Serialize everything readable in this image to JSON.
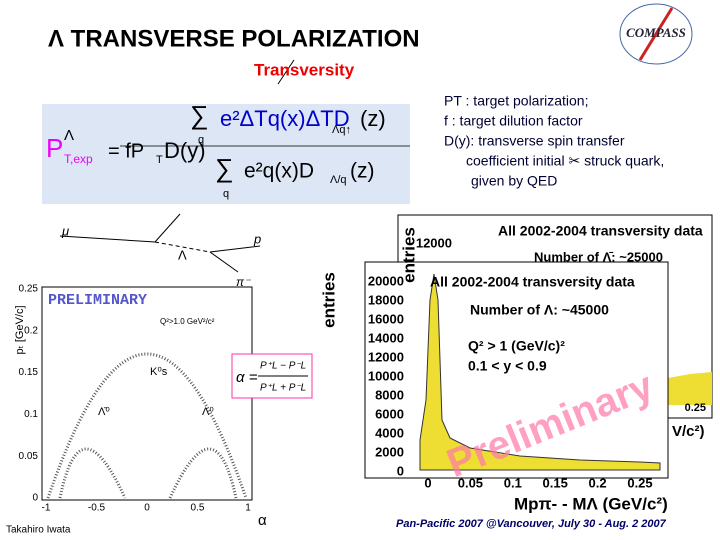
{
  "header": {
    "title": "Λ TRANSVERSE  POLARIZATION",
    "logo": "COMPASS",
    "subtitle": "Transversity"
  },
  "formula": {
    "lhs": "P",
    "lhs_sup": "Λ",
    "lhs_sub": "T,exp",
    "eq": "= fP",
    "eq_sub": "T",
    "dy": "D(y)",
    "sum": "∑",
    "sum_index": "q",
    "num": "e²ΔTq(x)ΔTD",
    "num_sub": "Λq↑",
    "num_end": "(z)",
    "den": "e²q(x)D",
    "den_sub": "Λ/q",
    "den_end": "(z)",
    "eq_index": "q"
  },
  "definitions": [
    "PT : target polarization;",
    "f : target dilution factor",
    "D(y): transverse spin transfer",
    "coefficient  initial ✂ struck quark,",
    "given by QED"
  ],
  "decay": {
    "mu": "μ",
    "lambda": "Λ",
    "p": "p",
    "pi": "π⁻"
  },
  "armenteros": {
    "stamp": "PRELIMINARY",
    "cut": "Q²>1.0 GeV²/c²",
    "ylabel": "pₜ [GeV/c]",
    "xlabel": "α",
    "yticks": [
      "0.25",
      "0.2",
      "0.15",
      "0.1",
      "0.05",
      "0"
    ],
    "xticks": [
      "-1",
      "-0.5",
      "0",
      "0.5",
      "1"
    ],
    "k0": "K⁰s",
    "lambdabar": "Λ̄⁰",
    "lambda": "Λ⁰",
    "alpha": "α =",
    "alpha_num": "P⁺L − P⁻L",
    "alpha_den": "P⁺L + P⁻L"
  },
  "back_histogram": {
    "ylabel": "entries",
    "ytick": "12000",
    "title": "All 2002-2004 transversity data",
    "count": "Number of Λ̄: ~25000",
    "xtick": "0.25",
    "xlabel_tail": "V/c²)"
  },
  "front_histogram": {
    "ylabel": "entries",
    "yticks": [
      "20000",
      "18000",
      "16000",
      "14000",
      "12000",
      "10000",
      "8000",
      "6000",
      "4000",
      "2000",
      "0"
    ],
    "xticks": [
      "0",
      "0.05",
      "0.1",
      "0.15",
      "0.2",
      "0.25"
    ],
    "title": "All 2002-2004 transversity data",
    "count": "Number of Λ: ~45000",
    "cut1": "Q² > 1 (GeV/c)²",
    "cut2": "0.1 < y < 0.9",
    "stamp": "Preliminary",
    "xlabel": "Mpπ- - MΛ (GeV/c²)"
  },
  "footer": {
    "author": "Takahiro Iwata",
    "event": "Pan-Pacific  2007 @Vancouver,  July 30 - Aug. 2 2007"
  }
}
